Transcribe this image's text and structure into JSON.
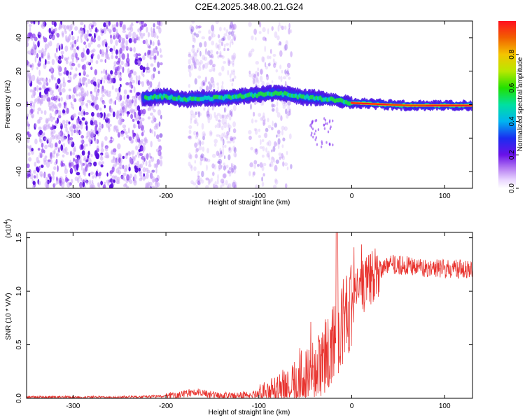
{
  "title": "C2E4.2025.348.00.21.G24",
  "chart_data": [
    {
      "type": "heatmap",
      "name": "spectrogram",
      "xlabel": "Height of straight line (km)",
      "ylabel": "Frequency (Hz)",
      "xlim": [
        -350,
        130
      ],
      "ylim": [
        -50,
        50
      ],
      "xticks": [
        -300,
        -200,
        -100,
        0,
        100
      ],
      "yticks": [
        -40,
        -20,
        0,
        20,
        40
      ],
      "colorbar": {
        "label": "Normalized spectral amplitude",
        "range": [
          0,
          1
        ],
        "ticks": [
          0.0,
          0.2,
          0.4,
          0.6,
          0.8
        ]
      },
      "ridge": {
        "description": "frequency centroid of the signal ridge vs height",
        "x": [
          -225,
          -200,
          -180,
          -160,
          -140,
          -120,
          -100,
          -80,
          -60,
          -40,
          -20,
          0,
          20,
          40,
          60,
          80,
          100,
          130
        ],
        "freq": [
          4,
          5,
          3,
          4,
          4,
          5,
          6,
          7,
          5,
          4,
          3,
          1,
          0.5,
          0,
          -0.5,
          -0.5,
          -0.5,
          -0.5
        ]
      }
    },
    {
      "type": "line",
      "name": "snr",
      "xlabel": "Height of straight line (km)",
      "ylabel": "SNR (10 * V/V)",
      "yscale_label": "(x10",
      "yscale_exp": "4",
      "yscale_close": ")",
      "xlim": [
        -350,
        130
      ],
      "ylim": [
        0,
        1.55
      ],
      "xticks": [
        -300,
        -200,
        -100,
        0,
        100
      ],
      "yticks": [
        0.0,
        0.5,
        1.0,
        1.5
      ],
      "series_color": "#e8332e",
      "trend": {
        "x": [
          -350,
          -250,
          -200,
          -180,
          -165,
          -150,
          -130,
          -110,
          -90,
          -70,
          -50,
          -40,
          -30,
          -20,
          -10,
          0,
          10,
          20,
          30,
          40,
          60,
          80,
          100,
          130
        ],
        "y": [
          0.01,
          0.01,
          0.02,
          0.04,
          0.06,
          0.03,
          0.02,
          0.03,
          0.06,
          0.12,
          0.2,
          0.27,
          0.35,
          0.5,
          0.7,
          0.9,
          1.02,
          1.12,
          1.2,
          1.25,
          1.24,
          1.22,
          1.21,
          1.2
        ]
      }
    }
  ]
}
